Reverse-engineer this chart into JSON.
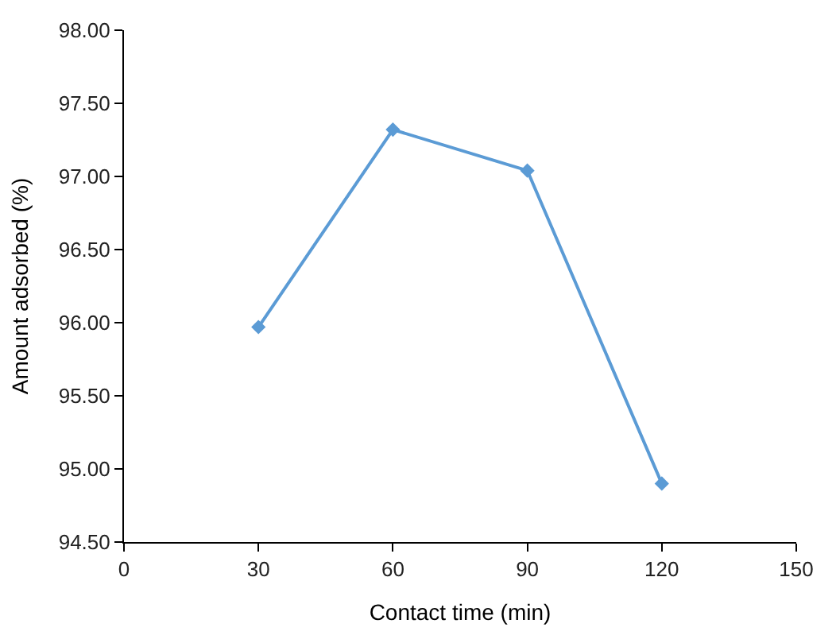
{
  "chart_data": {
    "type": "line",
    "xlabel": "Contact time (min)",
    "ylabel": "Amount adsorbed (%)",
    "x": [
      30,
      60,
      90,
      120
    ],
    "series": [
      {
        "color": "#5b9bd5",
        "values": [
          95.97,
          97.32,
          97.04,
          94.9
        ]
      }
    ],
    "xlim": [
      0,
      150
    ],
    "xticks": [
      0,
      30,
      60,
      90,
      120,
      150
    ],
    "ylim": [
      94.5,
      98.0
    ],
    "yticks": [
      {
        "value": 94.5,
        "label": "94.50"
      },
      {
        "value": 95.0,
        "label": "95.00"
      },
      {
        "value": 95.5,
        "label": "95.50"
      },
      {
        "value": 96.0,
        "label": "96.00"
      },
      {
        "value": 96.5,
        "label": "96.50"
      },
      {
        "value": 97.0,
        "label": "97.00"
      },
      {
        "value": 97.5,
        "label": "97.50"
      },
      {
        "value": 98.0,
        "label": "98.00"
      }
    ],
    "legend": false,
    "marker": "diamond",
    "line_style": "solid"
  }
}
